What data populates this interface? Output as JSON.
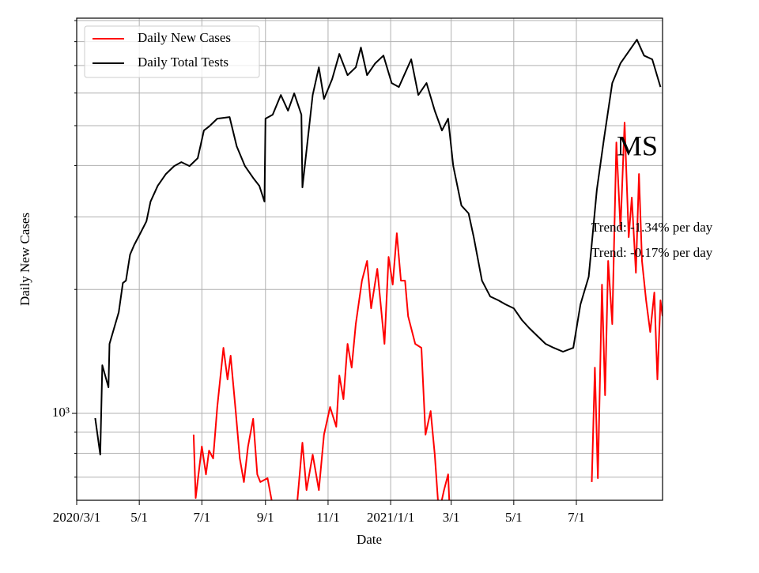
{
  "chart_data": {
    "type": "line",
    "xlabel": "Date",
    "ylabel": "Daily New Cases",
    "annotations": [
      "MS",
      "Trend: -1.34% per day",
      "Trend: -0.17% per day"
    ],
    "log_y": true,
    "grid": true,
    "legend": "upper left",
    "xlim": [
      "2020-03-01",
      "2021-09-23"
    ],
    "xticks": [
      {
        "value": "2020-03-01",
        "label": "2020/3/1"
      },
      {
        "value": "2020-05-01",
        "label": "5/1"
      },
      {
        "value": "2020-07-01",
        "label": "7/1"
      },
      {
        "value": "2020-09-01",
        "label": "9/1"
      },
      {
        "value": "2020-11-01",
        "label": "11/1"
      },
      {
        "value": "2021-01-01",
        "label": "2021/1/1"
      },
      {
        "value": "2021-03-01",
        "label": "3/1"
      },
      {
        "value": "2021-05-01",
        "label": "5/1"
      },
      {
        "value": "2021-07-01",
        "label": "7/1"
      }
    ],
    "ylim": [
      615,
      9120
    ],
    "yticks": [
      {
        "value": 1000,
        "label": "10³"
      }
    ],
    "yminorticks": [
      700,
      800,
      900,
      2000,
      3000,
      4000,
      5000,
      6000,
      7000,
      8000,
      9000
    ],
    "series": [
      {
        "name": "Daily New Cases",
        "color": "#ff0000",
        "x": [
          "2020-06-23",
          "2020-06-25",
          "2020-07-01",
          "2020-07-05",
          "2020-07-08",
          "2020-07-12",
          "2020-07-16",
          "2020-07-22",
          "2020-07-26",
          "2020-07-29",
          "2020-08-03",
          "2020-08-07",
          "2020-08-11",
          "2020-08-15",
          "2020-08-20",
          "2020-08-24",
          "2020-08-27",
          "2020-09-03",
          "2020-09-08",
          "2020-09-16",
          "2020-09-23",
          "2020-10-01",
          "2020-10-07",
          "2020-10-11",
          "2020-10-17",
          "2020-10-23",
          "2020-10-28",
          "2020-11-03",
          "2020-11-09",
          "2020-11-12",
          "2020-11-16",
          "2020-11-20",
          "2020-11-24",
          "2020-11-28",
          "2020-12-04",
          "2020-12-09",
          "2020-12-13",
          "2020-12-19",
          "2020-12-26",
          "2020-12-30",
          "2021-01-03",
          "2021-01-07",
          "2021-01-11",
          "2021-01-15",
          "2021-01-18",
          "2021-01-25",
          "2021-01-31",
          "2021-02-04",
          "2021-02-09",
          "2021-02-13",
          "2021-02-17",
          "2021-02-22",
          "2021-02-26",
          "2021-02-28",
          "2021-05-01",
          "2021-07-16",
          "2021-07-19",
          "2021-07-22",
          "2021-07-26",
          "2021-07-29",
          "2021-08-01",
          "2021-08-05",
          "2021-08-09",
          "2021-08-13",
          "2021-08-17",
          "2021-08-21",
          "2021-08-24",
          "2021-08-28",
          "2021-08-31",
          "2021-09-03",
          "2021-09-07",
          "2021-09-11",
          "2021-09-15",
          "2021-09-18",
          "2021-09-21",
          "2021-09-23"
        ],
        "values": [
          888,
          623,
          831,
          711,
          812,
          777,
          1036,
          1443,
          1209,
          1381,
          1013,
          777,
          681,
          831,
          970,
          711,
          681,
          696,
          596,
          571,
          596,
          571,
          849,
          651,
          794,
          651,
          888,
          1036,
          928,
          1236,
          1083,
          1475,
          1292,
          1648,
          2101,
          2346,
          1800,
          2245,
          1475,
          2399,
          2055,
          2739,
          2101,
          2101,
          1722,
          1475,
          1443,
          888,
          1013,
          794,
          571,
          651,
          711,
          546,
          null,
          681,
          1292,
          696,
          2055,
          1107,
          2346,
          1648,
          4550,
          2800,
          5085,
          2679,
          3343,
          2196,
          3816,
          2346,
          1882,
          1577,
          1966,
          1209,
          1882,
          1722
        ]
      },
      {
        "name": "Daily Total Tests",
        "color": "#000000",
        "x": [
          "2020-03-19",
          "2020-03-24",
          "2020-03-26",
          "2020-04-01",
          "2020-04-02",
          "2020-04-11",
          "2020-04-15",
          "2020-04-18",
          "2020-04-22",
          "2020-04-26",
          "2020-05-02",
          "2020-05-08",
          "2020-05-12",
          "2020-05-19",
          "2020-05-27",
          "2020-06-04",
          "2020-06-11",
          "2020-06-19",
          "2020-06-27",
          "2020-07-03",
          "2020-07-08",
          "2020-07-16",
          "2020-07-28",
          "2020-08-04",
          "2020-08-12",
          "2020-08-20",
          "2020-08-26",
          "2020-08-31",
          "2020-09-01",
          "2020-09-08",
          "2020-09-16",
          "2020-09-23",
          "2020-09-29",
          "2020-10-06",
          "2020-10-07",
          "2020-10-17",
          "2020-10-23",
          "2020-10-28",
          "2020-11-05",
          "2020-11-12",
          "2020-11-20",
          "2020-11-28",
          "2020-12-03",
          "2020-12-09",
          "2020-12-17",
          "2020-12-25",
          "2021-01-02",
          "2021-01-09",
          "2021-01-21",
          "2021-01-28",
          "2021-02-05",
          "2021-02-13",
          "2021-02-20",
          "2021-02-26",
          "2021-03-03",
          "2021-03-11",
          "2021-03-18",
          "2021-03-23",
          "2021-03-31",
          "2021-04-08",
          "2021-04-16",
          "2021-04-23",
          "2021-05-01",
          "2021-05-09",
          "2021-05-16",
          "2021-05-24",
          "2021-06-01",
          "2021-06-09",
          "2021-06-18",
          "2021-06-28",
          "2021-07-05",
          "2021-07-13",
          "2021-07-21",
          "2021-07-28",
          "2021-08-05",
          "2021-08-13",
          "2021-08-21",
          "2021-08-29",
          "2021-09-05",
          "2021-09-13",
          "2021-09-21"
        ],
        "values": [
          974,
          794,
          1309,
          1157,
          1475,
          1761,
          2073,
          2101,
          2431,
          2564,
          2739,
          2927,
          3269,
          3571,
          3816,
          3989,
          4078,
          3989,
          4169,
          4866,
          4974,
          5200,
          5245,
          4455,
          3989,
          3733,
          3571,
          3269,
          5200,
          5316,
          5935,
          5435,
          5989,
          5316,
          3540,
          5935,
          6929,
          5806,
          6485,
          7467,
          6630,
          6929,
          7739,
          6630,
          7085,
          7400,
          6344,
          6205,
          7244,
          5935,
          6344,
          5435,
          4866,
          5200,
          3989,
          3197,
          3061,
          2679,
          2101,
          1923,
          1882,
          1840,
          1800,
          1685,
          1612,
          1542,
          1475,
          1443,
          1412,
          1443,
          1840,
          2148,
          3493,
          4655,
          6344,
          7085,
          7568,
          8085,
          7400,
          7244,
          6205
        ]
      }
    ]
  }
}
